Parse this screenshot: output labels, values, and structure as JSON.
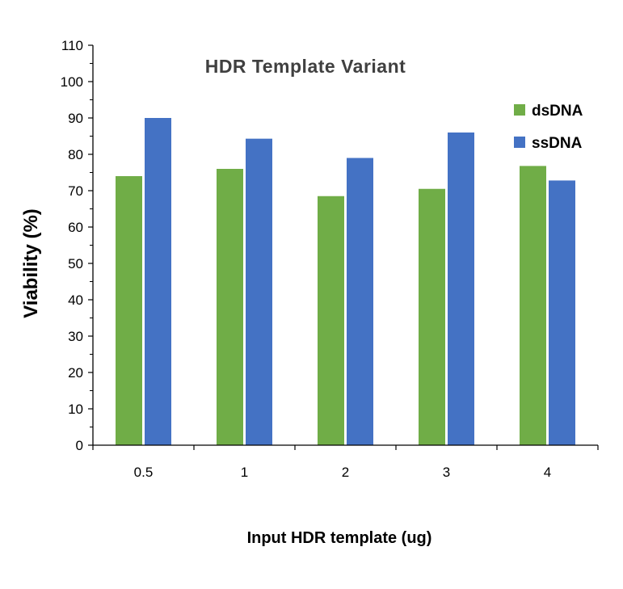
{
  "chart_data": {
    "type": "bar",
    "title": "HDR Template Variant",
    "xlabel": "Input HDR template (ug)",
    "ylabel": "Viability (%)",
    "categories": [
      "0.5",
      "1",
      "2",
      "3",
      "4"
    ],
    "series": [
      {
        "name": "dsDNA",
        "color": "#70ad47",
        "values": [
          74,
          76,
          68.5,
          70.5,
          76.8
        ]
      },
      {
        "name": "ssDNA",
        "color": "#4472c4",
        "values": [
          90,
          84.3,
          79,
          86,
          72.8
        ]
      }
    ],
    "ylim": [
      0,
      110
    ],
    "yticks": [
      "0",
      "10",
      "20",
      "30",
      "40",
      "50",
      "60",
      "70",
      "80",
      "90",
      "100",
      "110"
    ],
    "grid": false,
    "legend": "top-right"
  }
}
